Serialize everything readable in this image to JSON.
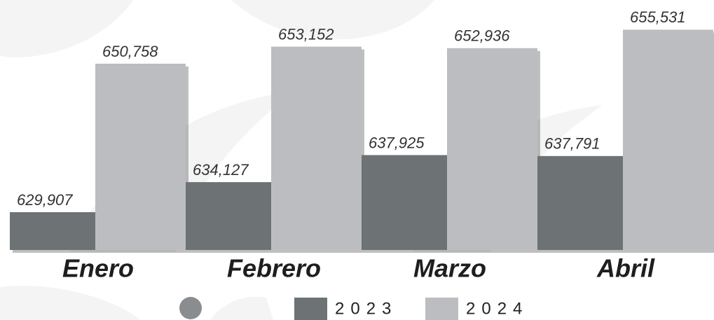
{
  "chart_data": {
    "type": "bar",
    "categories": [
      "Enero",
      "Febrero",
      "Marzo",
      "Abril"
    ],
    "series": [
      {
        "name": "2023",
        "color": "#6d7275",
        "values": [
          629907,
          634127,
          637925,
          637791
        ],
        "value_labels": [
          "629,907",
          "634,127",
          "637,925",
          "637,791"
        ]
      },
      {
        "name": "2024",
        "color": "#bcbdc0",
        "values": [
          650758,
          653152,
          652936,
          655531
        ],
        "value_labels": [
          "650,758",
          "653,152",
          "652,936",
          "655,531"
        ]
      }
    ],
    "ylim": [
      624600,
      659700
    ]
  }
}
